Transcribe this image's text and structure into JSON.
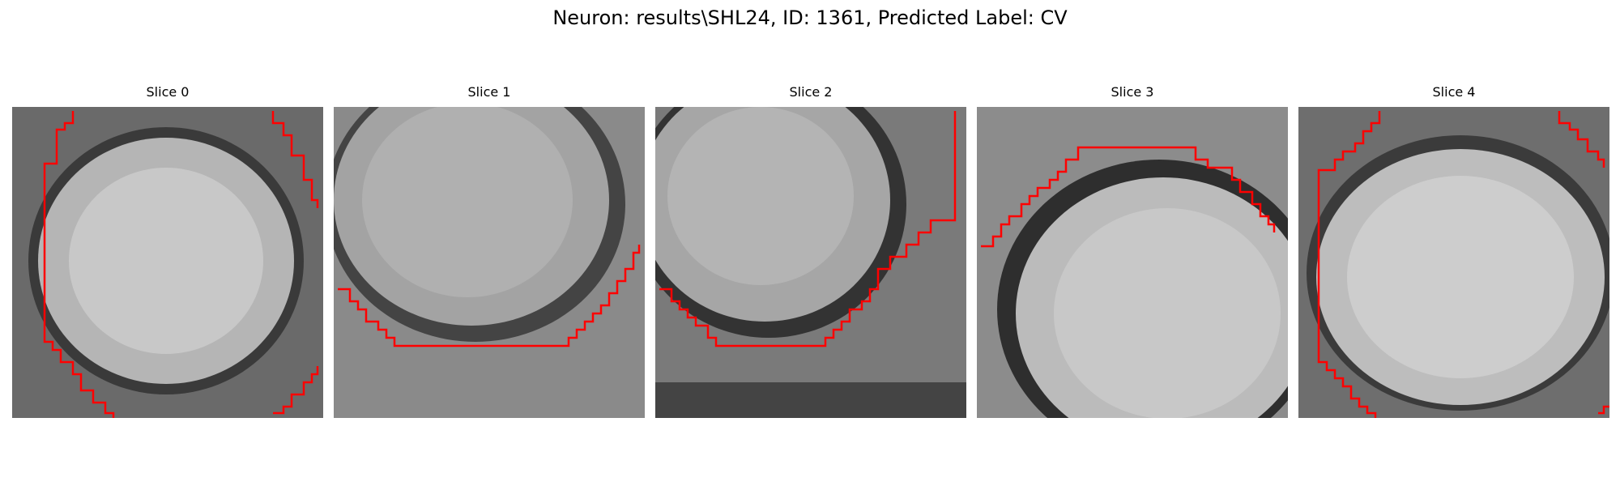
{
  "figure": {
    "suptitle": "Neuron: results\\SHL24, ID: 1361, Predicted Label: CV",
    "contour_color": "#ff0000"
  },
  "panels": [
    {
      "title": "Slice 0",
      "description": "grayscale EM crop with bright round neuron soma filling most of the frame; red contour traces left boundary and corners"
    },
    {
      "title": "Slice 1",
      "description": "grayscale EM crop, soma center-upper with dark membrane ring on right; red contour along lower boundary"
    },
    {
      "title": "Slice 2",
      "description": "grayscale EM crop, soma upper-left with dark membrane on right; red contour along lower-right boundary"
    },
    {
      "title": "Slice 3",
      "description": "grayscale EM crop, soma lower-right with dark membrane ring at upper-left; red contour along upper boundary"
    },
    {
      "title": "Slice 4",
      "description": "grayscale EM crop, bright soma filling frame; red contour along left boundary and corners"
    }
  ]
}
